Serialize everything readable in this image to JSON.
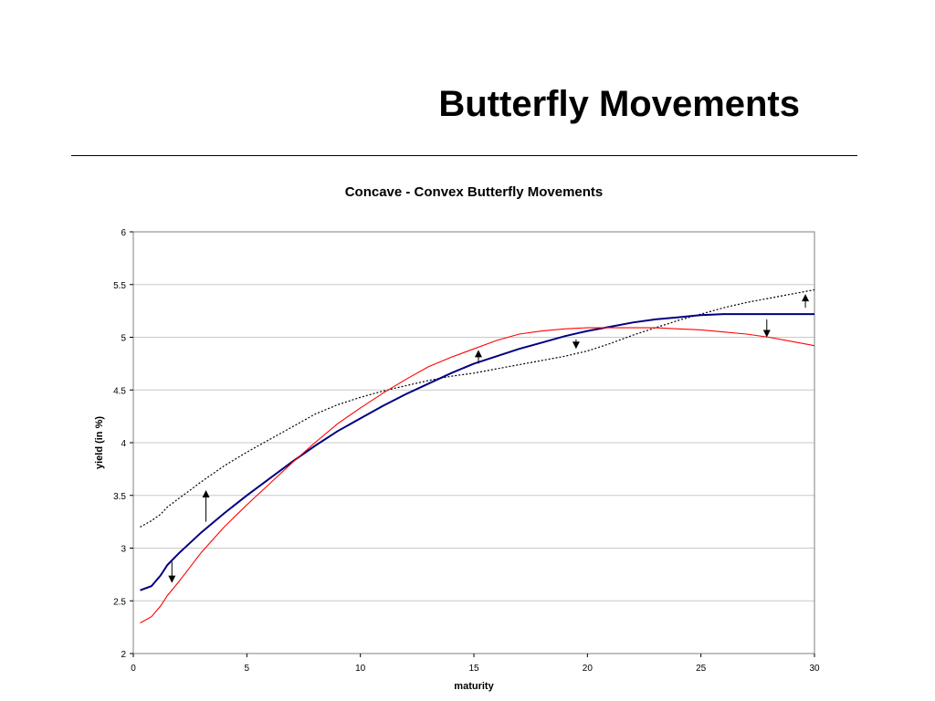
{
  "slide": {
    "title": "Butterfly Movements"
  },
  "chart_data": {
    "type": "line",
    "title": "Concave - Convex Butterfly Movements",
    "xlabel": "maturity",
    "ylabel": "yield (in %)",
    "xlim": [
      0,
      30
    ],
    "ylim": [
      2,
      6
    ],
    "xticks": [
      0,
      5,
      10,
      15,
      20,
      25,
      30
    ],
    "yticks": [
      2,
      2.5,
      3,
      3.5,
      4,
      4.5,
      5,
      5.5,
      6
    ],
    "grid": "horizontal",
    "legend": "none",
    "series": [
      {
        "color": "#000000",
        "style": "dotted",
        "x": [
          0.3,
          0.8,
          1.2,
          1.5,
          2,
          2.5,
          3,
          4,
          5,
          6,
          7,
          8,
          9,
          10,
          11,
          12,
          13,
          14,
          15,
          16,
          17,
          18,
          19,
          20,
          21,
          22,
          23,
          24,
          25,
          26,
          27,
          28,
          29,
          30
        ],
        "values": [
          3.2,
          3.26,
          3.32,
          3.39,
          3.47,
          3.55,
          3.63,
          3.78,
          3.91,
          4.03,
          4.15,
          4.27,
          4.36,
          4.43,
          4.49,
          4.54,
          4.59,
          4.63,
          4.66,
          4.7,
          4.74,
          4.78,
          4.82,
          4.87,
          4.94,
          5.02,
          5.09,
          5.16,
          5.22,
          5.28,
          5.33,
          5.37,
          5.41,
          5.45
        ]
      },
      {
        "color": "#000080",
        "style": "solid-thick",
        "x": [
          0.3,
          0.8,
          1.2,
          1.5,
          2,
          2.5,
          3,
          4,
          5,
          6,
          7,
          8,
          9,
          10,
          11,
          12,
          13,
          14,
          15,
          16,
          17,
          18,
          19,
          20,
          21,
          22,
          23,
          24,
          25,
          26,
          27,
          28,
          29,
          30
        ],
        "values": [
          2.6,
          2.64,
          2.74,
          2.84,
          2.95,
          3.05,
          3.15,
          3.33,
          3.5,
          3.66,
          3.82,
          3.97,
          4.11,
          4.23,
          4.35,
          4.46,
          4.56,
          4.66,
          4.75,
          4.82,
          4.89,
          4.95,
          5.01,
          5.06,
          5.1,
          5.14,
          5.17,
          5.19,
          5.21,
          5.22,
          5.22,
          5.22,
          5.22,
          5.22
        ]
      },
      {
        "color": "#ff0000",
        "style": "solid",
        "x": [
          0.3,
          0.8,
          1.2,
          1.5,
          2,
          2.5,
          3,
          4,
          5,
          6,
          7,
          8,
          9,
          10,
          11,
          12,
          13,
          14,
          15,
          16,
          17,
          18,
          19,
          20,
          21,
          22,
          23,
          24,
          25,
          26,
          27,
          28,
          29,
          30
        ],
        "values": [
          2.29,
          2.35,
          2.45,
          2.55,
          2.68,
          2.82,
          2.96,
          3.2,
          3.41,
          3.61,
          3.81,
          4.0,
          4.18,
          4.33,
          4.47,
          4.6,
          4.72,
          4.81,
          4.89,
          4.97,
          5.03,
          5.06,
          5.08,
          5.09,
          5.09,
          5.09,
          5.09,
          5.08,
          5.07,
          5.05,
          5.03,
          5.0,
          4.96,
          4.92
        ]
      }
    ],
    "annotations": [
      {
        "type": "arrow",
        "x": 1.7,
        "y_from": 2.87,
        "y_to": 2.67
      },
      {
        "type": "arrow",
        "x": 3.2,
        "y_from": 3.25,
        "y_to": 3.55
      },
      {
        "type": "arrow",
        "x": 15.2,
        "y_from": 4.75,
        "y_to": 4.88
      },
      {
        "type": "arrow",
        "x": 19.5,
        "y_from": 4.98,
        "y_to": 4.89
      },
      {
        "type": "arrow",
        "x": 27.9,
        "y_from": 5.17,
        "y_to": 5.0
      },
      {
        "type": "arrow",
        "x": 29.6,
        "y_from": 5.28,
        "y_to": 5.41
      }
    ]
  }
}
